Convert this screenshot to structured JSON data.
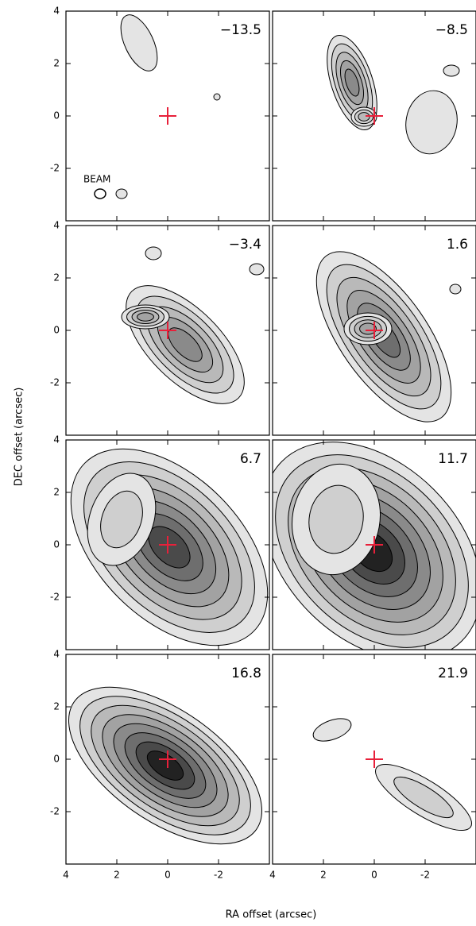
{
  "chart_data": {
    "type": "contour",
    "x_label": "RA offset (arcsec)",
    "y_label": "DEC offset (arcsec)",
    "xlim": [
      4,
      -4
    ],
    "ylim": [
      -4,
      4
    ],
    "xticks": [
      4,
      2,
      0,
      -2
    ],
    "yticks": [
      4,
      2,
      0,
      -2
    ],
    "source": {
      "x": 0,
      "y": 0,
      "color": "#e8203a"
    },
    "annotation": "BEAM",
    "panels": [
      {
        "label": "−13.5"
      },
      {
        "label": "−8.5"
      },
      {
        "label": "−3.4"
      },
      {
        "label": "1.6"
      },
      {
        "label": "6.7"
      },
      {
        "label": "11.7"
      },
      {
        "label": "16.8"
      },
      {
        "label": "21.9"
      }
    ]
  }
}
